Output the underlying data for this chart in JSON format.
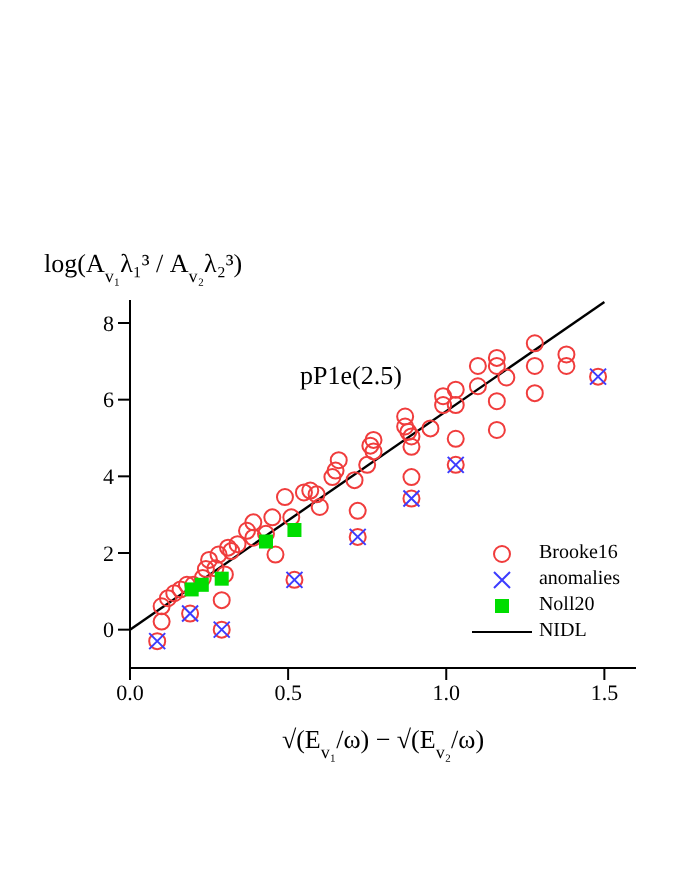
{
  "chart_data": {
    "type": "scatter",
    "title": "pP1e(2.5)",
    "xlabel": "√(E$_{v₁}$/ω) − √(E$_{v₂}$/ω)",
    "ylabel": "log(A$_{v₁}$λ₁³ / A$_{v₂}$λ₂³)",
    "xlim": [
      0,
      1.6
    ],
    "ylim": [
      -1,
      8.6
    ],
    "xticks": [
      {
        "value": 0,
        "label": "0.0"
      },
      {
        "value": 0.5,
        "label": "0.5"
      },
      {
        "value": 1,
        "label": "1.0"
      },
      {
        "value": 1.5,
        "label": "1.5"
      }
    ],
    "yticks": [
      0,
      2,
      4,
      6,
      8
    ],
    "legend": "bottom right",
    "series": [
      {
        "name": "Brooke16",
        "color": "#f03c3c",
        "marker": "circle",
        "x": [
          0.1,
          0.1,
          0.12,
          0.14,
          0.16,
          0.18,
          0.2,
          0.23,
          0.24,
          0.25,
          0.27,
          0.29,
          0.28,
          0.3,
          0.31,
          0.32,
          0.34,
          0.37,
          0.39,
          0.39,
          0.43,
          0.45,
          0.46,
          0.49,
          0.51,
          0.55,
          0.57,
          0.59,
          0.6,
          0.64,
          0.66,
          0.65,
          0.71,
          0.72,
          0.75,
          0.76,
          0.77,
          0.77,
          0.87,
          0.87,
          0.88,
          0.89,
          0.89,
          0.89,
          0.95,
          0.99,
          0.99,
          1.03,
          1.03,
          1.03,
          1.1,
          1.1,
          1.16,
          1.16,
          1.19,
          1.16,
          1.16,
          1.28,
          1.28,
          1.28,
          1.38,
          1.38,
          1.48,
          0.086,
          0.19,
          0.29,
          0.52,
          0.72,
          0.89,
          1.03
        ],
        "values": [
          0.21,
          0.61,
          0.82,
          0.95,
          1.05,
          1.17,
          1.17,
          1.35,
          1.58,
          1.82,
          1.6,
          0.77,
          1.96,
          1.44,
          2.14,
          2.05,
          2.23,
          2.58,
          2.4,
          2.8,
          2.5,
          2.93,
          1.96,
          3.46,
          2.93,
          3.58,
          3.63,
          3.53,
          3.2,
          3.98,
          4.42,
          4.15,
          3.9,
          3.1,
          4.3,
          4.8,
          4.95,
          4.65,
          5.56,
          5.3,
          5.16,
          5.04,
          4.77,
          3.98,
          5.25,
          6.09,
          5.86,
          6.26,
          5.86,
          4.98,
          6.88,
          6.35,
          7.09,
          6.88,
          6.58,
          5.96,
          5.21,
          7.47,
          6.88,
          6.17,
          7.18,
          6.88,
          6.6,
          -0.3,
          0.42,
          0.0,
          1.3,
          2.42,
          3.42,
          4.3
        ]
      },
      {
        "name": "anomalies",
        "color": "#3c3cff",
        "marker": "cross",
        "x": [
          0.086,
          0.19,
          0.29,
          0.52,
          0.72,
          0.89,
          1.03,
          1.48
        ],
        "values": [
          -0.3,
          0.42,
          0.0,
          1.3,
          2.42,
          3.42,
          4.3,
          6.6
        ]
      },
      {
        "name": "Noll20",
        "color": "#00dd00",
        "marker": "square",
        "x": [
          0.195,
          0.227,
          0.29,
          0.43,
          0.52
        ],
        "values": [
          1.05,
          1.17,
          1.33,
          2.3,
          2.6
        ]
      },
      {
        "name": "NIDL",
        "color": "#000000",
        "type": "line",
        "line_style": "solid",
        "x": [
          0,
          1.5
        ],
        "values": [
          0,
          8.55
        ]
      }
    ]
  }
}
